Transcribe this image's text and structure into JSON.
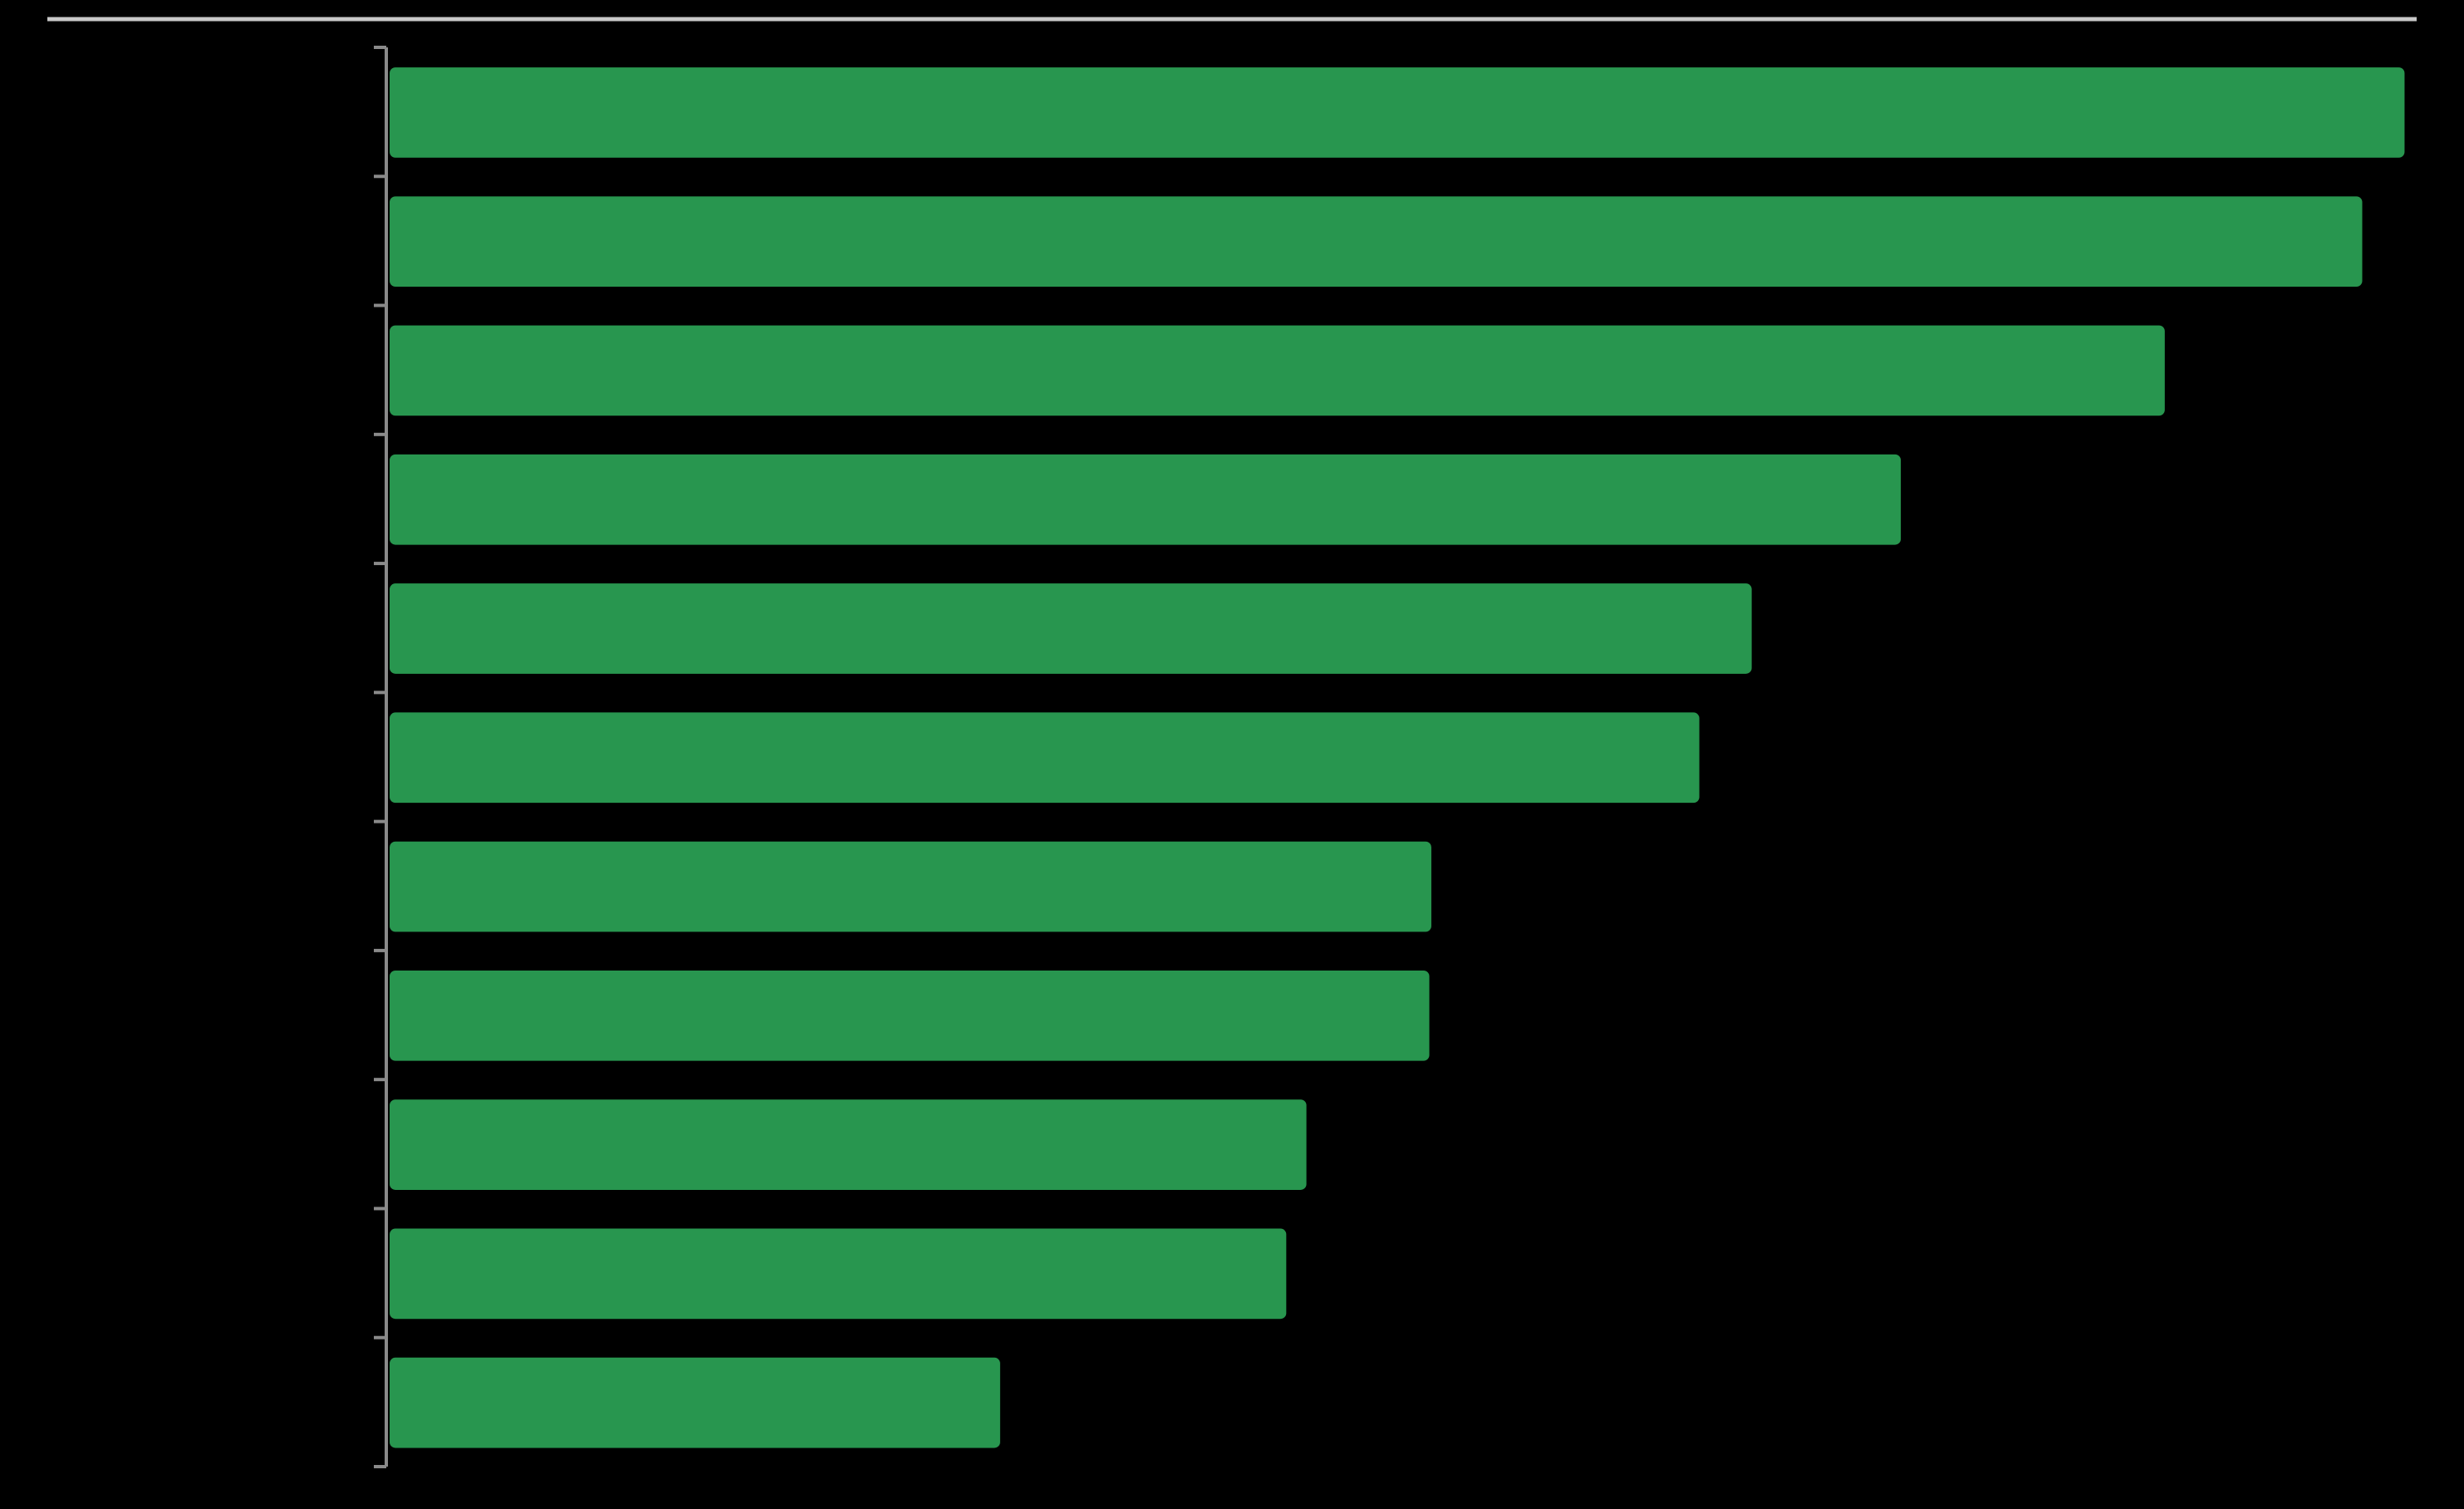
{
  "chart_data": {
    "type": "bar",
    "orientation": "horizontal",
    "categories": [
      null,
      null,
      null,
      null,
      null,
      null,
      null,
      null,
      null,
      null,
      null
    ],
    "values": [
      100,
      97.9,
      88.1,
      75.0,
      67.6,
      65.0,
      51.7,
      51.6,
      45.5,
      44.5,
      30.3
    ],
    "color": "#28964f",
    "xlim": [
      0,
      100.6
    ]
  }
}
